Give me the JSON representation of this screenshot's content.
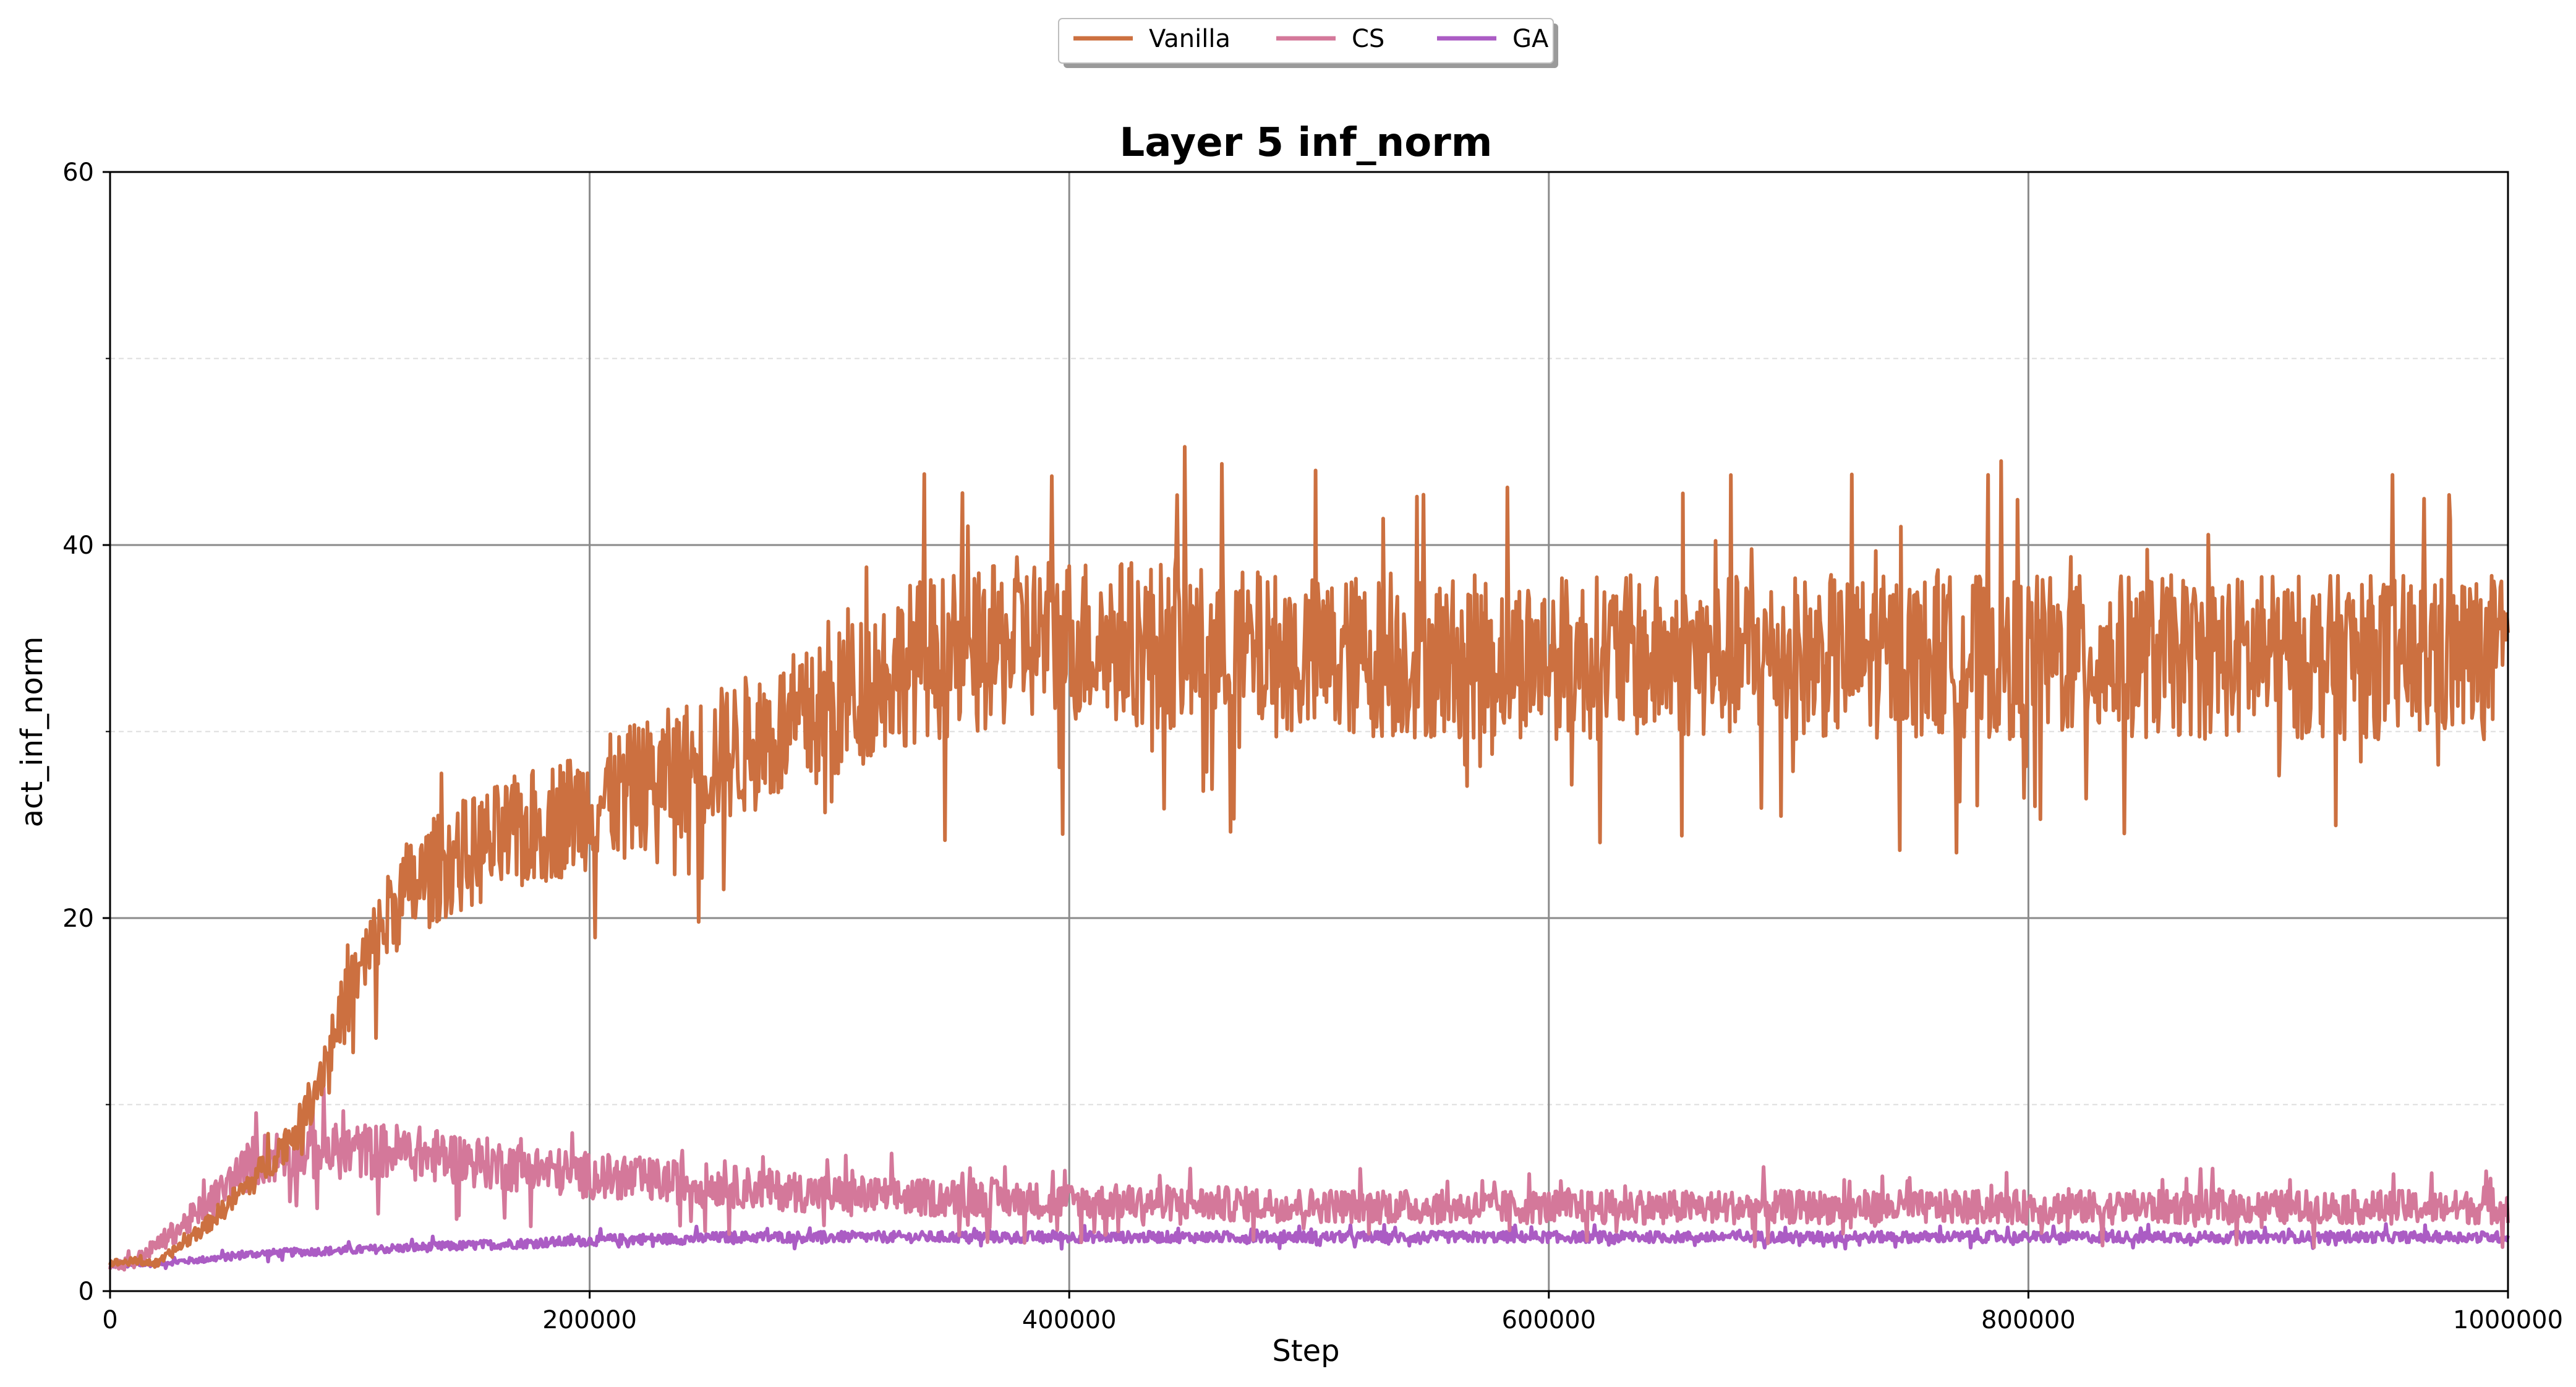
{
  "colors": {
    "vanilla": "#cc7040",
    "cs": "#d4789a",
    "ga": "#ab5cc4",
    "major_grid": "#8a8a8a",
    "minor_grid": "#dddddd"
  },
  "chart_data": {
    "type": "line",
    "title": "Layer 5 inf_norm",
    "xlabel": "Step",
    "ylabel": "act_inf_norm",
    "xlim": [
      0,
      1000000
    ],
    "ylim": [
      0,
      60
    ],
    "x_ticks": [
      0,
      200000,
      400000,
      600000,
      800000,
      1000000
    ],
    "x_tick_labels": [
      "0",
      "200000",
      "400000",
      "600000",
      "800000",
      "1000000"
    ],
    "y_ticks": [
      0,
      20,
      40,
      60
    ],
    "y_tick_labels": [
      "0",
      "20",
      "40",
      "60"
    ],
    "y_minor_ticks": [
      10,
      30,
      50
    ],
    "grid": true,
    "legend_position": "top-center, above the axes",
    "x": [
      0,
      10000,
      20000,
      40000,
      60000,
      80000,
      100000,
      120000,
      140000,
      160000,
      180000,
      200000,
      220000,
      240000,
      260000,
      280000,
      300000,
      320000,
      340000,
      360000,
      380000,
      400000,
      450000,
      500000,
      550000,
      600000,
      650000,
      700000,
      750000,
      800000,
      850000,
      900000,
      950000,
      1000000
    ],
    "series": [
      {
        "name": "Vanilla",
        "values": [
          1.5,
          1.6,
          1.5,
          3.5,
          6,
          9,
          16,
          21,
          23,
          24,
          25,
          26,
          27,
          28,
          29,
          30,
          31,
          33,
          34,
          34,
          35,
          35,
          34.5,
          34,
          34,
          34,
          34,
          34,
          34,
          34,
          34,
          34,
          34,
          34
        ]
      },
      {
        "name": "CS",
        "values": [
          1.4,
          1.6,
          2.5,
          4.5,
          7,
          7.5,
          7.5,
          7.5,
          7.2,
          6.8,
          6.5,
          6.2,
          6,
          5.8,
          5.6,
          5.4,
          5.2,
          5.1,
          5,
          5,
          4.9,
          4.8,
          4.7,
          4.6,
          4.5,
          4.5,
          4.5,
          4.5,
          4.5,
          4.5,
          4.5,
          4.5,
          4.5,
          4.5
        ]
      },
      {
        "name": "GA",
        "values": [
          1.4,
          1.4,
          1.5,
          1.7,
          2,
          2.1,
          2.2,
          2.3,
          2.4,
          2.5,
          2.6,
          2.7,
          2.8,
          2.8,
          2.9,
          2.9,
          2.9,
          2.9,
          2.9,
          2.9,
          2.9,
          2.9,
          2.9,
          2.9,
          2.9,
          2.9,
          2.9,
          2.9,
          2.9,
          2.9,
          2.9,
          2.9,
          2.9,
          2.9
        ]
      }
    ]
  }
}
